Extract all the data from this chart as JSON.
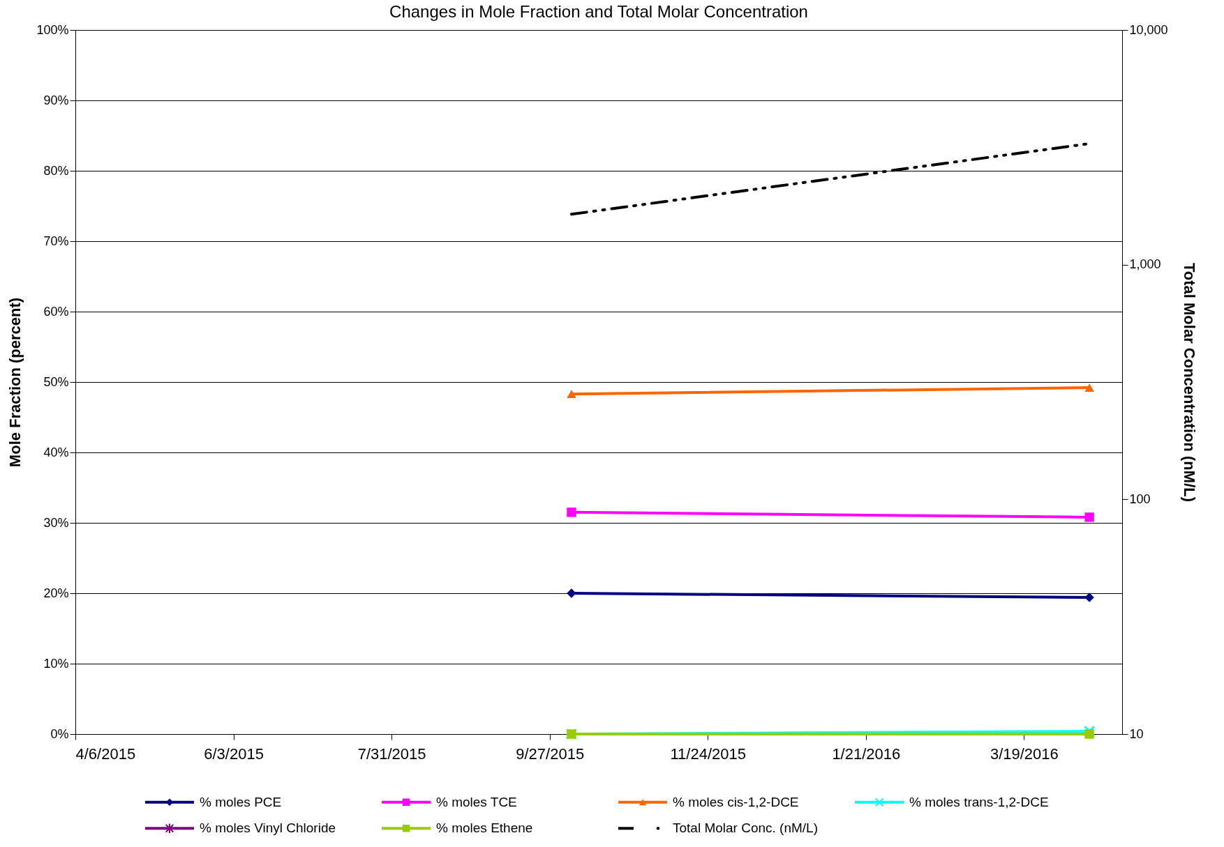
{
  "chart_data": {
    "type": "line",
    "title": "Changes in Mole Fraction and Total Molar Concentration",
    "ylabel": "Mole Fraction (percent)",
    "y2label": "Total Molar Concentration (nM/L)",
    "x": [
      "2015-10-05",
      "2016-04-12"
    ],
    "xlim": [
      "2015-04-06",
      "2016-04-24"
    ],
    "xticks": [
      {
        "value": "2015-04-06",
        "label": "4/6/2015"
      },
      {
        "value": "2015-06-03",
        "label": "6/3/2015"
      },
      {
        "value": "2015-07-31",
        "label": "7/31/2015"
      },
      {
        "value": "2015-09-27",
        "label": "9/27/2015"
      },
      {
        "value": "2015-11-24",
        "label": "11/24/2015"
      },
      {
        "value": "2016-01-21",
        "label": "1/21/2016"
      },
      {
        "value": "2016-03-19",
        "label": "3/19/2016"
      }
    ],
    "ylim": [
      0,
      100
    ],
    "yticks": [
      {
        "value": 0,
        "label": "0%"
      },
      {
        "value": 10,
        "label": "10%"
      },
      {
        "value": 20,
        "label": "20%"
      },
      {
        "value": 30,
        "label": "30%"
      },
      {
        "value": 40,
        "label": "40%"
      },
      {
        "value": 50,
        "label": "50%"
      },
      {
        "value": 60,
        "label": "60%"
      },
      {
        "value": 70,
        "label": "70%"
      },
      {
        "value": 80,
        "label": "80%"
      },
      {
        "value": 90,
        "label": "90%"
      },
      {
        "value": 100,
        "label": "100%"
      }
    ],
    "y2lim": [
      10,
      10000
    ],
    "y2ticks": [
      10,
      100,
      {
        "value": 1000,
        "label": "1,000"
      },
      {
        "value": 10000,
        "label": "10,000"
      }
    ],
    "log": "y2",
    "grid": "y",
    "legend": "bottom",
    "series": [
      {
        "name": "% moles PCE",
        "color": "#000080",
        "marker": "diamond",
        "values": [
          20.0,
          19.4
        ]
      },
      {
        "name": "% moles TCE",
        "color": "#ff00ff",
        "marker": "square",
        "values": [
          31.5,
          30.8
        ]
      },
      {
        "name": "% moles cis-1,2-DCE",
        "color": "#ff6600",
        "marker": "triangle",
        "values": [
          48.3,
          49.2
        ]
      },
      {
        "name": "% moles trans-1,2-DCE",
        "color": "#00ffff",
        "marker": "cross",
        "values": [
          0,
          0.4
        ]
      },
      {
        "name": "% moles Vinyl Chloride",
        "color": "#800080",
        "marker": "star",
        "values": [
          null,
          null
        ]
      },
      {
        "name": "% moles Ethene",
        "color": "#99cc00",
        "marker": "square",
        "values": [
          0,
          0
        ]
      },
      {
        "name": "Total Molar Conc. (nM/L)",
        "color": "#000000",
        "marker": "none",
        "line_style": "dashed",
        "axis": "y2",
        "values": [
          1640,
          3280
        ]
      }
    ]
  }
}
